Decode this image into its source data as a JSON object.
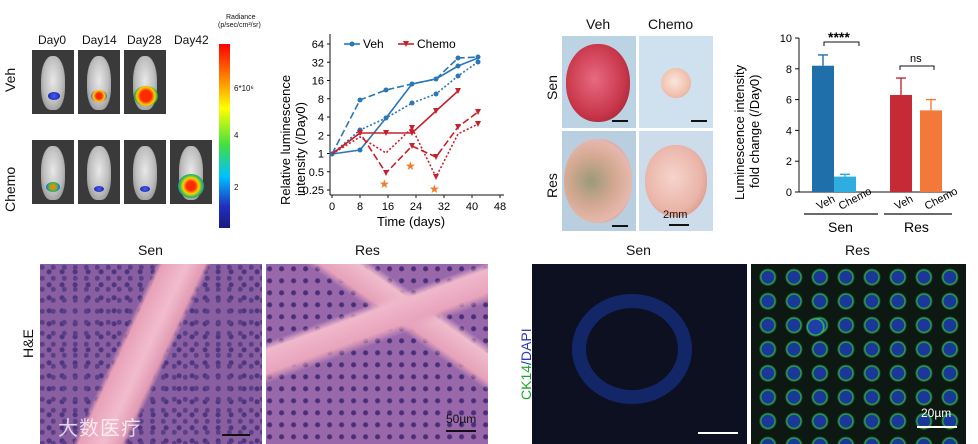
{
  "bli": {
    "days": [
      "Day0",
      "Day14",
      "Day28",
      "Day42"
    ],
    "rows": [
      "Veh",
      "Chemo"
    ],
    "colorbar_title_1": "Radiance",
    "colorbar_title_2": "(p/sec/cm²/sr)",
    "colorbar_ticks": [
      "6*10⁶",
      "4",
      "2"
    ]
  },
  "line_chart": {
    "legend": [
      "Veh",
      "Chemo"
    ],
    "ylabel_1": "Relative luminescence",
    "ylabel_2": "intensity (/Day0)",
    "xlabel": "Time (days)",
    "yticks": [
      "64",
      "32",
      "16",
      "8",
      "4",
      "2",
      "1",
      "0.5",
      "0.25"
    ],
    "xticks": [
      "0",
      "8",
      "16",
      "24",
      "32",
      "40",
      "48"
    ],
    "colors": {
      "veh": "#2a77b5",
      "chemo": "#c8202b",
      "star": "#f07c2a"
    }
  },
  "tumors": {
    "cols": [
      "Veh",
      "Chemo"
    ],
    "rows": [
      "Sen",
      "Res"
    ],
    "scalebar": "2mm"
  },
  "chart_data": {
    "type": "bar",
    "categories": [
      "Veh",
      "Chemo",
      "Veh",
      "Chemo"
    ],
    "groups": [
      "Sen",
      "Res"
    ],
    "values": [
      8.2,
      1.0,
      6.3,
      5.3
    ],
    "errors": [
      0.7,
      0.15,
      1.1,
      0.7
    ],
    "ylabel": "Luminescence intensity fold change (/Day0)",
    "ylim": [
      0,
      10
    ],
    "yticks": [
      "0",
      "2",
      "4",
      "6",
      "8",
      "10"
    ],
    "significance": [
      "****",
      "ns"
    ],
    "colors": [
      "#1f6fab",
      "#2eaee0",
      "#c62a36",
      "#f3793b"
    ]
  },
  "histology": {
    "he_cols": [
      "Sen",
      "Res"
    ],
    "he_row": "H&E",
    "he_scalebar": "50µm",
    "if_cols": [
      "Sen",
      "Res"
    ],
    "if_row_1": "CK14",
    "if_row_2": "/DAPI",
    "if_scalebar": "20µm"
  },
  "watermark": "大数医疗"
}
